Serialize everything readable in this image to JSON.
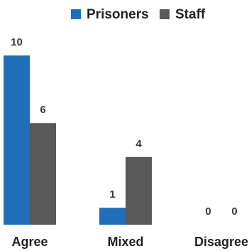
{
  "chart_data": {
    "type": "bar",
    "categories": [
      "Agree",
      "Mixed",
      "Disagree"
    ],
    "series": [
      {
        "name": "Prisoners",
        "values": [
          10,
          1,
          0
        ],
        "color": "#1f6fb8"
      },
      {
        "name": "Staff",
        "values": [
          6,
          4,
          0
        ],
        "color": "#595959"
      }
    ],
    "data_labels": true,
    "legend_position": "top",
    "grid": false,
    "ylim": [
      0,
      10
    ]
  }
}
